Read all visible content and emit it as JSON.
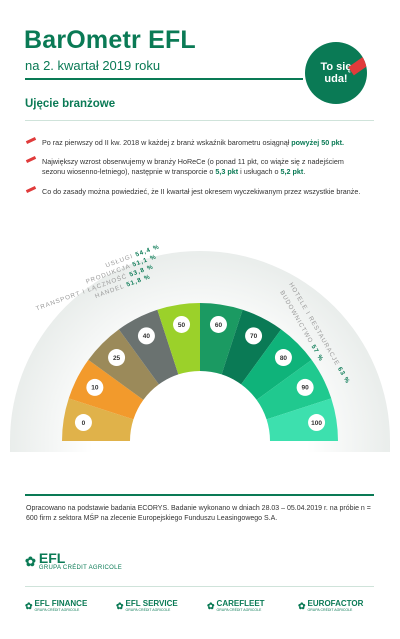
{
  "header": {
    "title": "BarOmetr EFL",
    "subtitle": "na 2. kwartał 2019 roku",
    "badge_line1": "To się",
    "badge_line2": "uda!"
  },
  "section": {
    "title": "Ujęcie branżowe"
  },
  "bullets": [
    {
      "pre": "Po raz pierwszy od II kw. 2018 w każdej z branż wskaźnik barometru osiągnął ",
      "bold": "powyżej 50 pkt.",
      "post": ""
    },
    {
      "pre": "Największy wzrost obserwujemy w branży HoReCe (o ponad 11 pkt, co wiąże się z nadejściem sezonu wiosenno-letniego), następnie w transporcie o ",
      "bold": "5,3 pkt",
      "mid": " i usługach o ",
      "bold2": "5,2 pkt",
      "post": "."
    },
    {
      "pre": "Co do zasady można powiedzieć, że II kwartał jest okresem wyczekiwanym przez wszystkie branże.",
      "bold": "",
      "post": ""
    }
  ],
  "gauge": {
    "ticks": [
      "0",
      "10",
      "25",
      "40",
      "50",
      "60",
      "70",
      "80",
      "90",
      "100"
    ],
    "segment_colors": [
      "#e0b24a",
      "#f29a2c",
      "#9b8a5a",
      "#6a7270",
      "#9bd12a",
      "#1b9a62",
      "#0a7a55",
      "#0fb37a",
      "#20c98f",
      "#3de0ae"
    ],
    "sectors_left": [
      {
        "label": "USŁUGI",
        "value": "54,4 %"
      },
      {
        "label": "PRODUKCJA",
        "value": "51,1 %"
      },
      {
        "label": "TRANSPORT I ŁĄCZNOŚĆ",
        "value": "53,8 %"
      },
      {
        "label": "HANDEL",
        "value": "51,8 %"
      }
    ],
    "sectors_right": [
      {
        "label": "HOTELE I RESTAURACJE",
        "value": "63 %"
      },
      {
        "label": "BUDOWNICTWO",
        "value": "57 %"
      }
    ],
    "accent_color": "#0a7a55"
  },
  "footnote": "Opracowano na podstawie badania ECORYS. Badanie wykonano w dniach 28.03 – 05.04.2019 r. na próbie n = 600 firm z sektora MŚP na zlecenie Europejskiego Funduszu Leasingowego S.A.",
  "logo": {
    "name": "EFL",
    "sub": "GRUPA CRÉDIT AGRICOLE"
  },
  "brands": [
    {
      "name": "EFL FINANCE",
      "sub": "GRUPA CRÉDIT AGRICOLE"
    },
    {
      "name": "EFL SERVICE",
      "sub": "GRUPA CRÉDIT AGRICOLE"
    },
    {
      "name": "CAREFLEET",
      "sub": "GRUPA CRÉDIT AGRICOLE"
    },
    {
      "name": "EUROFACTOR",
      "sub": "GRUPA CRÉDIT AGRICOLE"
    }
  ]
}
